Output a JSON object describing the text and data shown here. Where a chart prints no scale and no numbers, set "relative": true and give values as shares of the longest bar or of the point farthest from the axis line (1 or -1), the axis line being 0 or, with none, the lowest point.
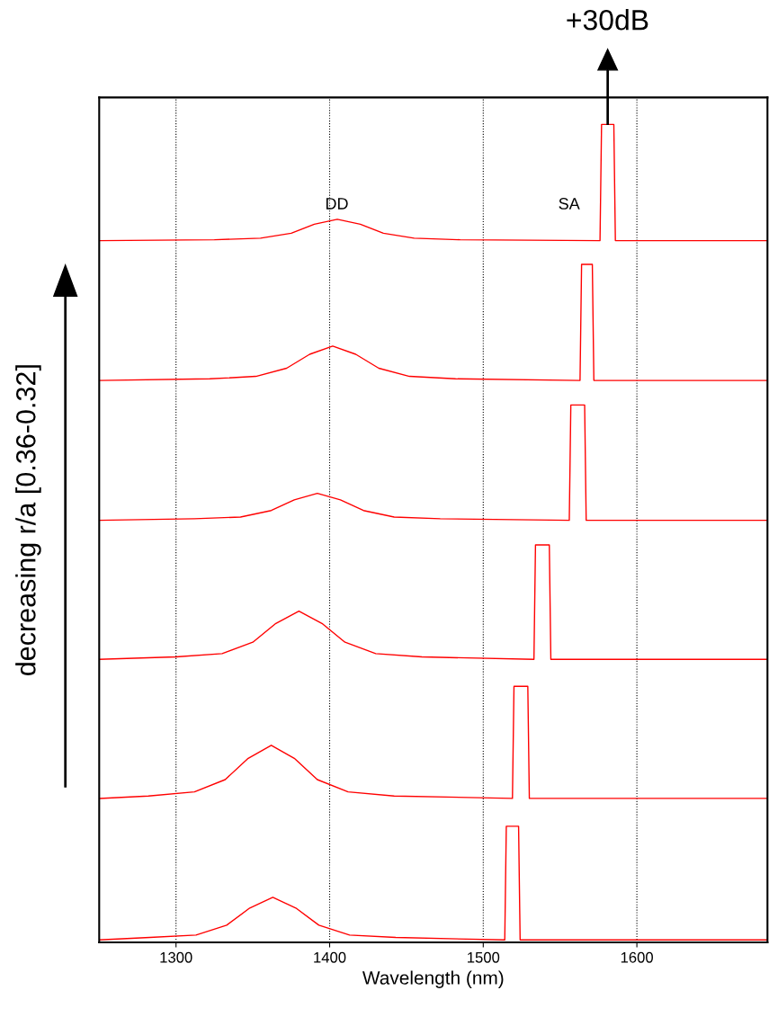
{
  "chart_data": {
    "type": "line",
    "relative": true,
    "xlabel": "Wavelength (nm)",
    "ylabel": "decreasing r/a [0.36-0.32]",
    "xlim": [
      1250,
      1685
    ],
    "xticks": [
      1300,
      1400,
      1500,
      1600
    ],
    "grid": "x",
    "legend": false,
    "marker": "none",
    "line_style": "solid",
    "annotations": [
      "DD",
      "SA",
      "+30dB"
    ],
    "series": [
      {
        "color": "#ff0000",
        "x": [
          1250,
          1325,
          1355,
          1375,
          1390,
          1405,
          1420,
          1435,
          1455,
          1485,
          1576,
          1577,
          1585,
          1586,
          1685
        ],
        "values": [
          0.858,
          0.859,
          0.861,
          0.867,
          0.878,
          0.884,
          0.878,
          0.867,
          0.861,
          0.859,
          0.858,
          1.0,
          1.0,
          0.858,
          0.858
        ]
      },
      {
        "color": "#ff0000",
        "x": [
          1250,
          1322,
          1352,
          1372,
          1387,
          1402,
          1417,
          1432,
          1452,
          1482,
          1563,
          1564,
          1571,
          1572,
          1685
        ],
        "values": [
          0.687,
          0.689,
          0.692,
          0.702,
          0.719,
          0.729,
          0.719,
          0.702,
          0.692,
          0.689,
          0.687,
          0.829,
          0.829,
          0.687,
          0.687
        ]
      },
      {
        "color": "#ff0000",
        "x": [
          1250,
          1312,
          1342,
          1362,
          1377,
          1392,
          1407,
          1422,
          1442,
          1472,
          1556,
          1557,
          1566,
          1567,
          1685
        ],
        "values": [
          0.516,
          0.518,
          0.52,
          0.528,
          0.541,
          0.549,
          0.541,
          0.528,
          0.52,
          0.518,
          0.516,
          0.657,
          0.657,
          0.516,
          0.516
        ]
      },
      {
        "color": "#ff0000",
        "x": [
          1250,
          1300,
          1330,
          1350,
          1365,
          1380,
          1395,
          1410,
          1430,
          1460,
          1533,
          1534,
          1543,
          1544,
          1685
        ],
        "values": [
          0.346,
          0.349,
          0.353,
          0.367,
          0.39,
          0.405,
          0.39,
          0.367,
          0.353,
          0.349,
          0.346,
          0.486,
          0.486,
          0.346,
          0.346
        ]
      },
      {
        "color": "#ff0000",
        "x": [
          1250,
          1282,
          1312,
          1332,
          1347,
          1362,
          1377,
          1392,
          1412,
          1442,
          1519,
          1520,
          1529,
          1530,
          1685
        ],
        "values": [
          0.176,
          0.179,
          0.184,
          0.199,
          0.225,
          0.241,
          0.225,
          0.199,
          0.184,
          0.179,
          0.176,
          0.313,
          0.313,
          0.176,
          0.176
        ]
      },
      {
        "color": "#ff0000",
        "x": [
          1250,
          1283,
          1313,
          1333,
          1348,
          1363,
          1378,
          1393,
          1413,
          1443,
          1514,
          1515,
          1523,
          1524,
          1685
        ],
        "values": [
          0.003,
          0.006,
          0.009,
          0.021,
          0.042,
          0.055,
          0.042,
          0.021,
          0.009,
          0.006,
          0.003,
          0.142,
          0.142,
          0.003,
          0.003
        ]
      }
    ]
  }
}
